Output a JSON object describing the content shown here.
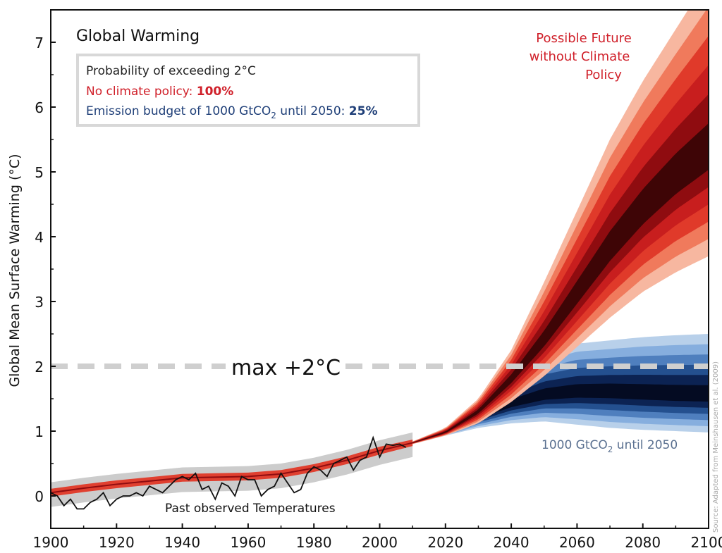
{
  "chart_data": {
    "type": "area",
    "title": "Global Warming",
    "xlabel": "",
    "ylabel": "Global Mean Surface Warming (°C)",
    "xlim": [
      1900,
      2100
    ],
    "ylim": [
      -0.5,
      7.5
    ],
    "x_ticks": [
      1900,
      1920,
      1940,
      1960,
      1980,
      2000,
      2020,
      2040,
      2060,
      2080,
      2100
    ],
    "y_ticks": [
      0,
      1,
      2,
      3,
      4,
      5,
      6,
      7
    ],
    "grid": false,
    "legend": {
      "line1": "Probability of exceeding 2°C",
      "line2_label": "No climate policy: ",
      "line2_value": "100%",
      "line3_label_pre": "Emission budget of 1000 GtCO",
      "line3_sub": "2",
      "line3_label_post": " until 2050: ",
      "line3_value": "25%"
    },
    "threshold": {
      "y": 2,
      "label": "max +2°C"
    },
    "annotations": {
      "no_policy_line1": "Possible Future",
      "no_policy_line2": "without Climate",
      "no_policy_line3": "Policy",
      "budget_label_pre": "1000 GtCO",
      "budget_label_sub": "2",
      "budget_label_post": " until 2050",
      "past_label": "Past observed Temperatures",
      "source": "Source: Adapted from Meinshausen et al. (2009)"
    },
    "colors": {
      "red_bands": [
        "#f7b7a0",
        "#f07a5c",
        "#e03a2a",
        "#c81e1e",
        "#8f0c10",
        "#3e0506"
      ],
      "blue_bands": [
        "#b8d0ea",
        "#86aede",
        "#4f7fbe",
        "#24508f",
        "#0c2353",
        "#040b22"
      ],
      "hist_band": "#e04030",
      "hist_uncertainty": "#cccccc",
      "observed": "#111111",
      "threshold": "#cfcfcf",
      "red_text": "#d0202a",
      "blue_text": "#1f3f78",
      "annotation_blue": "#5a7090"
    },
    "series": [
      {
        "x": [
          1900,
          1910,
          1920,
          1930,
          1940,
          1950,
          1960,
          1970,
          1980,
          1990,
          2000,
          2010
        ],
        "median": [
          0.05,
          0.12,
          0.18,
          0.23,
          0.28,
          0.29,
          0.3,
          0.34,
          0.43,
          0.55,
          0.7,
          0.82
        ],
        "half_width": [
          0.06,
          0.06,
          0.06,
          0.06,
          0.06,
          0.06,
          0.06,
          0.06,
          0.06,
          0.06,
          0.06,
          0.05
        ]
      },
      {
        "name": "Possible Future without Climate Policy",
        "x": [
          2010,
          2020,
          2030,
          2040,
          2050,
          2060,
          2070,
          2080,
          2090,
          2100
        ],
        "median": [
          0.82,
          0.98,
          1.3,
          1.8,
          2.4,
          3.1,
          3.8,
          4.4,
          4.9,
          5.3
        ],
        "p05": [
          0.8,
          0.93,
          1.12,
          1.45,
          1.85,
          2.3,
          2.75,
          3.15,
          3.45,
          3.7
        ],
        "p95": [
          0.84,
          1.05,
          1.5,
          2.25,
          3.3,
          4.4,
          5.5,
          6.4,
          7.2,
          8.0
        ]
      },
      {
        "name": "1000 GtCO2 until 2050",
        "x": [
          2010,
          2020,
          2030,
          2040,
          2050,
          2060,
          2070,
          2080,
          2090,
          2100
        ],
        "median": [
          0.82,
          0.98,
          1.22,
          1.42,
          1.55,
          1.6,
          1.6,
          1.58,
          1.56,
          1.55
        ],
        "p05": [
          0.8,
          0.93,
          1.05,
          1.12,
          1.15,
          1.1,
          1.05,
          1.02,
          1.0,
          0.98
        ],
        "p95": [
          0.84,
          1.05,
          1.45,
          1.85,
          2.2,
          2.35,
          2.4,
          2.45,
          2.48,
          2.5
        ]
      },
      {
        "name": "Past observed Temperatures",
        "x": [
          1900,
          1902,
          1904,
          1906,
          1908,
          1910,
          1912,
          1914,
          1916,
          1918,
          1920,
          1922,
          1924,
          1926,
          1928,
          1930,
          1932,
          1934,
          1936,
          1938,
          1940,
          1942,
          1944,
          1946,
          1948,
          1950,
          1952,
          1954,
          1956,
          1958,
          1960,
          1962,
          1964,
          1966,
          1968,
          1970,
          1972,
          1974,
          1976,
          1978,
          1980,
          1982,
          1984,
          1986,
          1988,
          1990,
          1992,
          1994,
          1996,
          1998,
          2000,
          2002,
          2004,
          2006,
          2008
        ],
        "y": [
          0.05,
          0.0,
          -0.15,
          -0.05,
          -0.2,
          -0.2,
          -0.1,
          -0.05,
          0.05,
          -0.15,
          -0.05,
          0.0,
          0.0,
          0.05,
          0.0,
          0.15,
          0.1,
          0.05,
          0.15,
          0.25,
          0.3,
          0.25,
          0.35,
          0.1,
          0.15,
          -0.05,
          0.2,
          0.15,
          0.0,
          0.3,
          0.25,
          0.25,
          0.0,
          0.1,
          0.15,
          0.35,
          0.2,
          0.05,
          0.1,
          0.35,
          0.45,
          0.4,
          0.3,
          0.5,
          0.55,
          0.6,
          0.4,
          0.55,
          0.6,
          0.9,
          0.6,
          0.8,
          0.78,
          0.8,
          0.75
        ]
      }
    ]
  }
}
